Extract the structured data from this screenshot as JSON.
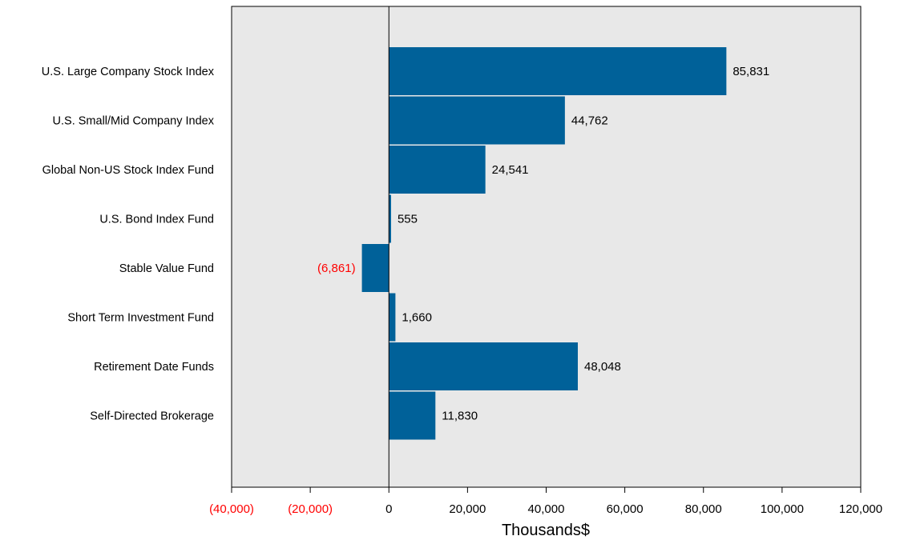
{
  "chart_data": {
    "type": "bar",
    "orientation": "horizontal",
    "categories": [
      "U.S. Large Company Stock Index",
      "U.S. Small/Mid Company Index",
      "Global Non-US Stock Index Fund",
      "U.S. Bond Index Fund",
      "Stable Value Fund",
      "Short Term Investment Fund",
      "Retirement Date Funds",
      "Self-Directed Brokerage"
    ],
    "values": [
      85831,
      44762,
      24541,
      555,
      -6861,
      1660,
      48048,
      11830
    ],
    "value_labels": [
      "85,831",
      "44,762",
      "24,541",
      "555",
      "(6,861)",
      "1,660",
      "48,048",
      "11,830"
    ],
    "xlabel": "Thousands$",
    "ylabel": "",
    "title": "",
    "xlim": [
      -40000,
      120000
    ],
    "x_ticks": [
      -40000,
      -20000,
      0,
      20000,
      40000,
      60000,
      80000,
      100000,
      120000
    ],
    "x_tick_labels": [
      "(40,000)",
      "(20,000)",
      "0",
      "20,000",
      "40,000",
      "60,000",
      "80,000",
      "100,000",
      "120,000"
    ],
    "grid": false,
    "legend": "none",
    "colors": {
      "bar": "#006199",
      "plot_background": "#e8e8e8",
      "negative_text": "#ff0000",
      "text": "#000000"
    }
  }
}
